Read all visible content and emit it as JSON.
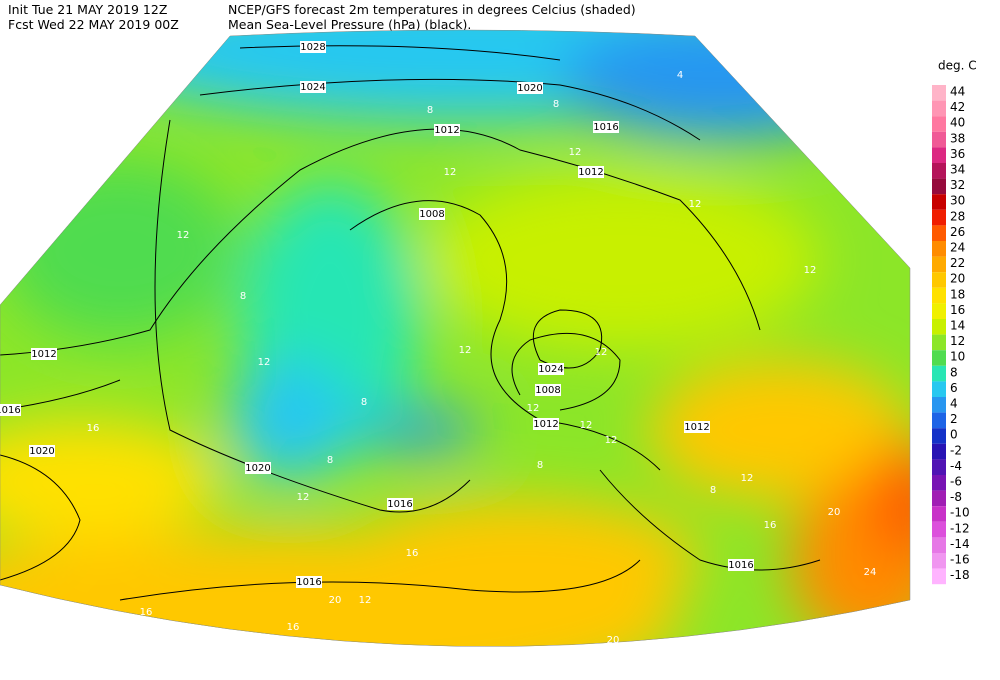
{
  "header": {
    "line1_left": "Init  Tue 21 MAY 2019 12Z",
    "line1_right": "NCEP/GFS forecast 2m temperatures in degrees Celcius (shaded)",
    "line2_left": "Fcst Wed 22 MAY 2019 00Z",
    "line2_right": "Mean Sea-Level Pressure (hPa) (black)."
  },
  "legend": {
    "title": "deg. C",
    "entries": [
      {
        "label": "44",
        "color": "#ffb4c8"
      },
      {
        "label": "42",
        "color": "#ff96b4"
      },
      {
        "label": "40",
        "color": "#ff78a0"
      },
      {
        "label": "38",
        "color": "#f05a96"
      },
      {
        "label": "36",
        "color": "#dc2882"
      },
      {
        "label": "34",
        "color": "#b4145a"
      },
      {
        "label": "32",
        "color": "#960a3c"
      },
      {
        "label": "30",
        "color": "#c80000"
      },
      {
        "label": "28",
        "color": "#f01e00"
      },
      {
        "label": "26",
        "color": "#ff5a00"
      },
      {
        "label": "24",
        "color": "#ff8c00"
      },
      {
        "label": "22",
        "color": "#ffaa00"
      },
      {
        "label": "20",
        "color": "#ffc800"
      },
      {
        "label": "18",
        "color": "#ffe100"
      },
      {
        "label": "16",
        "color": "#f0f000"
      },
      {
        "label": "14",
        "color": "#c8f000"
      },
      {
        "label": "12",
        "color": "#8ce628"
      },
      {
        "label": "10",
        "color": "#50dc50"
      },
      {
        "label": "8",
        "color": "#28e6b4"
      },
      {
        "label": "6",
        "color": "#28c8f0"
      },
      {
        "label": "4",
        "color": "#2896f0"
      },
      {
        "label": "2",
        "color": "#1e64e6"
      },
      {
        "label": "0",
        "color": "#1432c8"
      },
      {
        "label": "-2",
        "color": "#2814b4"
      },
      {
        "label": "-4",
        "color": "#5014b4"
      },
      {
        "label": "-6",
        "color": "#7814b4"
      },
      {
        "label": "-8",
        "color": "#a01eb4"
      },
      {
        "label": "-10",
        "color": "#c832c8"
      },
      {
        "label": "-12",
        "color": "#dc50dc"
      },
      {
        "label": "-14",
        "color": "#e678e6"
      },
      {
        "label": "-16",
        "color": "#f096f0"
      },
      {
        "label": "-18",
        "color": "#ffb4ff"
      }
    ]
  },
  "map": {
    "isobar_labels": [
      "1028",
      "1024",
      "1020",
      "1016",
      "1012",
      "1012",
      "1008",
      "1012",
      "1016",
      "1020",
      "1020",
      "1016",
      "1024",
      "1008",
      "1012",
      "1012",
      "1016",
      "1016"
    ],
    "temperature_labels": [
      "12",
      "8",
      "12",
      "16",
      "12",
      "12",
      "12",
      "12",
      "12",
      "8",
      "8",
      "12",
      "16",
      "20",
      "12",
      "16",
      "16",
      "20",
      "16",
      "20",
      "24",
      "12",
      "8",
      "12",
      "12",
      "12",
      "8",
      "4",
      "8",
      "12",
      "8"
    ]
  }
}
